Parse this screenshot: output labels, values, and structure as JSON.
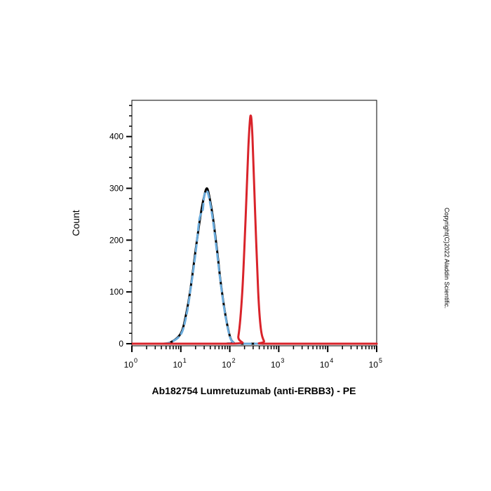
{
  "chart_data": {
    "type": "line",
    "xlabel": "Ab182754 Lumretuzumab (anti-ERBB3) - PE",
    "ylabel": "Count",
    "x_scale": "log",
    "xlim": [
      1,
      100000
    ],
    "ylim": [
      0,
      470
    ],
    "y_ticks": [
      0,
      100,
      200,
      300,
      400
    ],
    "x_ticks": [
      {
        "base": "10",
        "exp": "0",
        "value": 1
      },
      {
        "base": "10",
        "exp": "1",
        "value": 10
      },
      {
        "base": "10",
        "exp": "2",
        "value": 100
      },
      {
        "base": "10",
        "exp": "3",
        "value": 1000
      },
      {
        "base": "10",
        "exp": "4",
        "value": 10000
      },
      {
        "base": "10",
        "exp": "5",
        "value": 100000
      }
    ],
    "grid": false,
    "series": [
      {
        "color": "#000000",
        "dash": "solid",
        "points": [
          [
            1,
            0
          ],
          [
            4,
            0
          ],
          [
            6,
            2
          ],
          [
            10,
            20
          ],
          [
            13,
            60
          ],
          [
            16,
            110
          ],
          [
            20,
            180
          ],
          [
            25,
            245
          ],
          [
            30,
            285
          ],
          [
            34,
            300
          ],
          [
            38,
            285
          ],
          [
            45,
            245
          ],
          [
            55,
            180
          ],
          [
            65,
            120
          ],
          [
            80,
            60
          ],
          [
            100,
            15
          ],
          [
            120,
            2
          ],
          [
            150,
            0
          ],
          [
            100000,
            0
          ]
        ]
      },
      {
        "color": "#6aabdc",
        "dash": "dashed",
        "points": [
          [
            1,
            0
          ],
          [
            4,
            0
          ],
          [
            6,
            2
          ],
          [
            10,
            18
          ],
          [
            13,
            55
          ],
          [
            16,
            108
          ],
          [
            20,
            175
          ],
          [
            24,
            240
          ],
          [
            28,
            258
          ],
          [
            30,
            285
          ],
          [
            34,
            295
          ],
          [
            38,
            280
          ],
          [
            45,
            240
          ],
          [
            55,
            175
          ],
          [
            65,
            118
          ],
          [
            80,
            58
          ],
          [
            100,
            14
          ],
          [
            120,
            2
          ],
          [
            150,
            0
          ],
          [
            100000,
            0
          ]
        ]
      },
      {
        "color": "#d9232a",
        "dash": "solid",
        "points": [
          [
            1,
            0
          ],
          [
            120,
            0
          ],
          [
            150,
            15
          ],
          [
            180,
            100
          ],
          [
            210,
            240
          ],
          [
            240,
            380
          ],
          [
            265,
            440
          ],
          [
            290,
            400
          ],
          [
            330,
            250
          ],
          [
            380,
            100
          ],
          [
            430,
            30
          ],
          [
            500,
            5
          ],
          [
            600,
            0
          ],
          [
            100000,
            0
          ]
        ]
      }
    ]
  },
  "copyright": "Copyright(C)2022 Aladdin Scientific."
}
